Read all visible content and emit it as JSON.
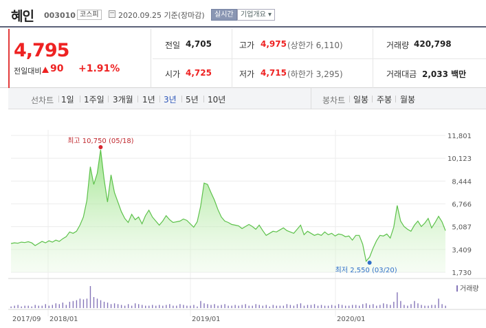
{
  "header": {
    "name": "혜인",
    "code": "003010",
    "market": "코스피",
    "date_text": "2020.09.25 기준(장마감)",
    "realtime_label": "실시간",
    "company_label": "기업개요 ▾"
  },
  "price": {
    "current": "4,795",
    "prev_label": "전일대비",
    "change": "90",
    "change_pct": "+1.91%"
  },
  "stats": {
    "prev_close_label": "전일",
    "prev_close": "4,705",
    "high_label": "고가",
    "high": "4,975",
    "upper_limit": "(상한가 6,110)",
    "volume_label": "거래량",
    "volume": "420,798",
    "open_label": "시가",
    "open": "4,725",
    "low_label": "저가",
    "low": "4,715",
    "lower_limit": "(하한가 3,295)",
    "trade_value_label": "거래대금",
    "trade_value": "2,033 백만"
  },
  "periods": {
    "label": "선차트",
    "items": [
      "1일",
      "1주일",
      "3개월",
      "1년",
      "3년",
      "5년",
      "10년"
    ],
    "active": "3년"
  },
  "candles": {
    "label": "봉차트",
    "items": [
      "일봉",
      "주봉",
      "월봉"
    ]
  },
  "chart_data": {
    "type": "area",
    "y_ticks": [
      "11,801",
      "10,123",
      "8,444",
      "6,766",
      "5,087",
      "3,409",
      "1,730"
    ],
    "ylim": [
      1730,
      11801
    ],
    "x_ticks": [
      "2017/09",
      "2018/01",
      "2019/01",
      "2020/01"
    ],
    "high_label": "최고 10,750 (05/18)",
    "low_label": "최저 2,550 (03/20)",
    "volume_label": "거래량",
    "series": [
      {
        "values": [
          3850,
          3900,
          3870,
          3950,
          3920,
          3980,
          3900,
          3700,
          3850,
          4000,
          3900,
          4050,
          3950,
          4100,
          4000,
          4200,
          4350,
          4700,
          4600,
          4750,
          5200,
          5800,
          7000,
          9500,
          8200,
          9000,
          10750,
          8600,
          6900,
          8900,
          7600,
          6900,
          6200,
          5700,
          5400,
          6000,
          5600,
          5800,
          5300,
          5900,
          6300,
          5800,
          5500,
          5200,
          5500,
          5900,
          5600,
          5400,
          5450,
          5500,
          5650,
          5550,
          5300,
          5050,
          5450,
          6600,
          8300,
          8200,
          7600,
          7050,
          6350,
          5800,
          5500,
          5400,
          5250,
          5200,
          5150,
          4950,
          5100,
          5250,
          5100,
          4900,
          5200,
          4800,
          4450,
          4600,
          4750,
          4700,
          4850,
          5000,
          4800,
          4700,
          4600,
          4900,
          5200,
          4500,
          4750,
          4600,
          4450,
          4550,
          4450,
          4700,
          4500,
          4600,
          4400,
          4550,
          4500,
          4350,
          4400,
          4100,
          4450,
          4450,
          3800,
          2550,
          2850,
          3500,
          4050,
          4450,
          4400,
          4550,
          4250,
          5050,
          6650,
          5500,
          5100,
          4900,
          4750,
          5200,
          5500,
          5100,
          5350,
          5700,
          5000,
          5400,
          5850,
          5450,
          4795
        ]
      },
      {
        "values": [
          2,
          3,
          4,
          2,
          3,
          3,
          2,
          4,
          3,
          3,
          5,
          3,
          4,
          6,
          5,
          7,
          4,
          8,
          9,
          10,
          12,
          11,
          12,
          28,
          14,
          12,
          10,
          8,
          7,
          5,
          6,
          5,
          4,
          3,
          5,
          3,
          6,
          5,
          4,
          3,
          3,
          4,
          3,
          4,
          3,
          4,
          5,
          3,
          3,
          5,
          4,
          3,
          3,
          4,
          2,
          9,
          6,
          5,
          4,
          5,
          3,
          4,
          5,
          3,
          3,
          4,
          3,
          4,
          5,
          3,
          3,
          5,
          4,
          3,
          4,
          2,
          4,
          3,
          3,
          3,
          5,
          4,
          3,
          5,
          6,
          3,
          4,
          4,
          5,
          3,
          4,
          3,
          3,
          4,
          3,
          5,
          4,
          3,
          3,
          4,
          4,
          3,
          5,
          6,
          4,
          5,
          3,
          4,
          6,
          5,
          4,
          8,
          20,
          9,
          4,
          3,
          5,
          9,
          6,
          4,
          3,
          3,
          4,
          4,
          12,
          5,
          3
        ]
      }
    ]
  }
}
